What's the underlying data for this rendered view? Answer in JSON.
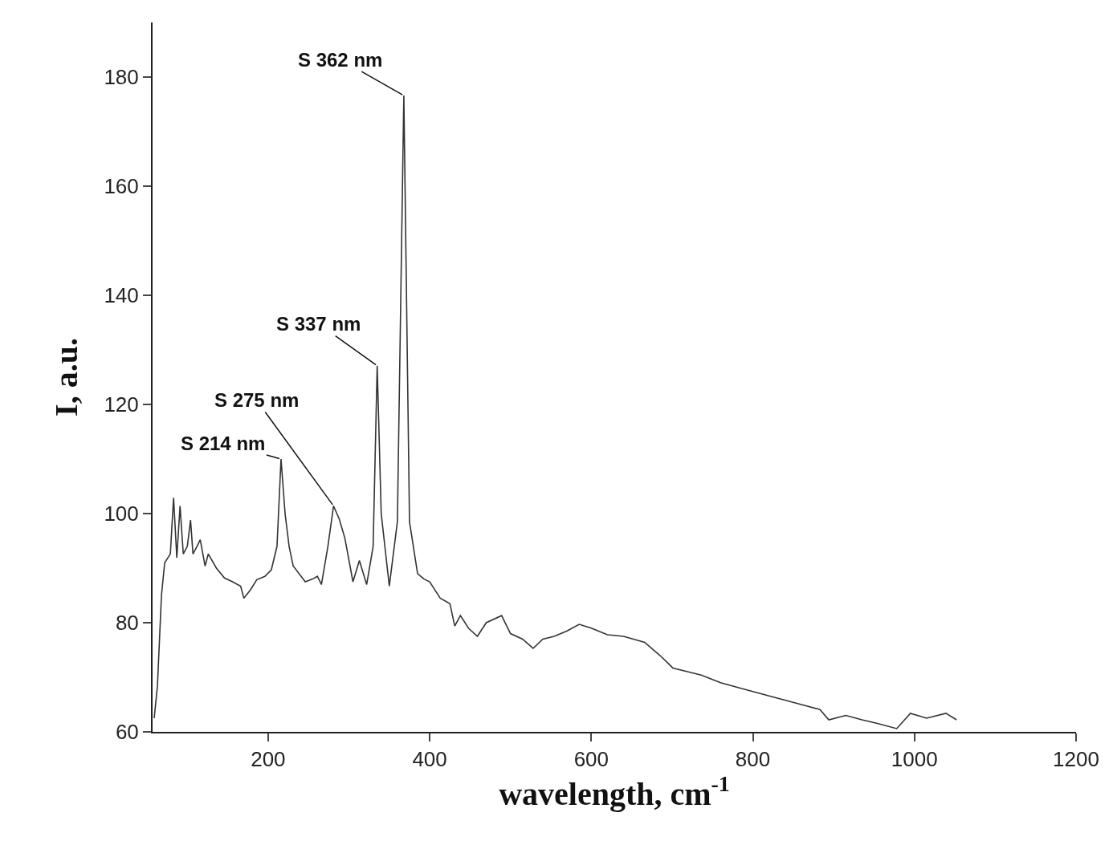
{
  "chart_data": {
    "type": "line",
    "xlabel": "wavelength, cm$^{-1}$",
    "ylabel": "I, a.u.",
    "xlim": [
      57,
      1200
    ],
    "ylim": [
      60,
      190
    ],
    "xticks": [
      200,
      400,
      600,
      800,
      1000,
      1200
    ],
    "yticks": [
      60,
      80,
      100,
      120,
      140,
      160,
      180
    ],
    "marker": "none",
    "line_style": "solid",
    "series": [
      {
        "color": "#333333",
        "x": [
          59,
          63,
          68,
          72,
          79,
          83,
          87,
          91,
          95,
          100,
          104,
          107,
          112,
          116,
          122,
          126,
          136,
          146,
          156,
          166,
          170,
          178,
          186,
          196,
          204,
          211,
          216,
          221,
          226,
          231,
          246,
          255,
          261,
          266,
          274,
          281,
          288,
          295,
          305,
          313,
          322,
          330,
          335,
          340,
          350,
          360,
          368,
          375,
          385,
          393,
          400,
          413,
          425,
          431,
          438,
          448,
          459,
          470,
          489,
          500,
          515,
          528,
          540,
          554,
          570,
          585,
          600,
          620,
          640,
          666,
          685,
          701,
          720,
          736,
          760,
          787,
          810,
          835,
          860,
          883,
          894,
          915,
          935,
          955,
          978,
          995,
          1015,
          1039,
          1052
        ],
        "values": [
          62.5,
          68.4,
          85,
          91,
          92.6,
          102.9,
          91.9,
          101.4,
          92.6,
          94,
          98.8,
          92.6,
          94,
          95.2,
          90.4,
          92.6,
          90,
          88.2,
          87.5,
          86.7,
          84.5,
          86,
          87.9,
          88.5,
          89.7,
          94,
          110,
          100,
          94,
          90.4,
          87.5,
          88,
          88.5,
          87,
          94,
          101.4,
          99,
          95.5,
          87.5,
          91.4,
          87,
          94,
          127.1,
          100,
          86.7,
          98.5,
          176.6,
          98.5,
          89,
          88,
          87.5,
          84.5,
          83.5,
          79.4,
          81.3,
          79,
          77.5,
          80,
          81.3,
          78,
          77,
          75.3,
          77,
          77.5,
          78.5,
          79.7,
          79,
          77.8,
          77.5,
          76.4,
          74,
          71.7,
          71,
          70.4,
          69,
          67.9,
          67,
          66,
          65,
          64.1,
          62.2,
          63,
          62.2,
          61.5,
          60.6,
          63.4,
          62.5,
          63.4,
          62.2
        ]
      }
    ],
    "annotations": [
      {
        "text": "S 214 nm",
        "x": 216,
        "y": 110
      },
      {
        "text": "S 275 nm",
        "x": 281,
        "y": 101.4
      },
      {
        "text": "S 337 nm",
        "x": 335,
        "y": 127.1
      },
      {
        "text": "S 362 nm",
        "x": 368,
        "y": 176.6
      }
    ]
  }
}
